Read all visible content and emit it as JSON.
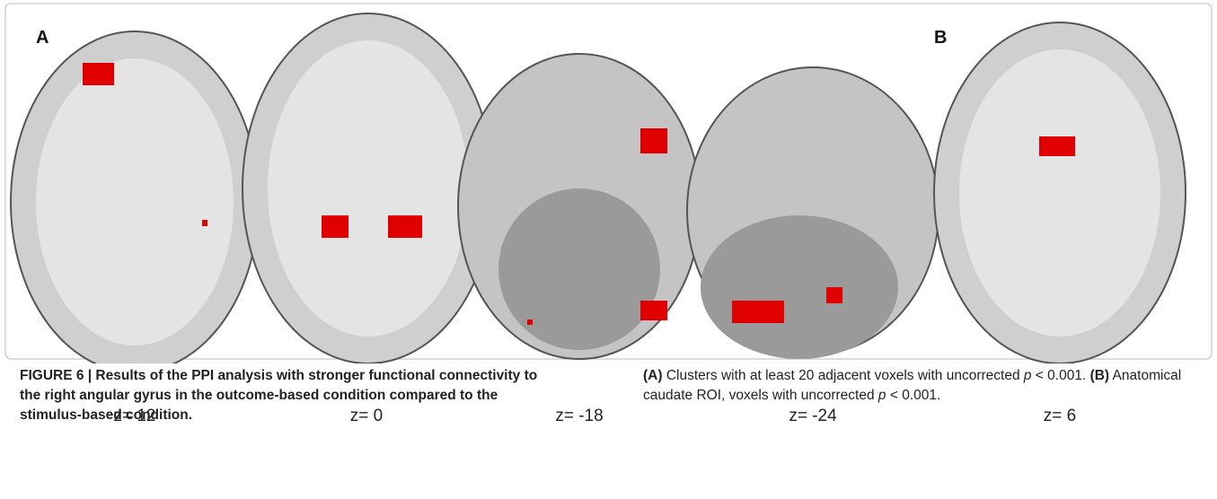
{
  "figure": {
    "panel_labels": [
      "A",
      "B"
    ],
    "slices": [
      "z= 12",
      "z= 0",
      "z= -18",
      "z= -24",
      "z= 6"
    ],
    "caption_left": "FIGURE 6 | Results of the PPI analysis with stronger functional connectivity to the right angular gyrus in the outcome-based condition compared to the stimulus-based condition.",
    "caption_right": [
      "(A)",
      " Clusters with at least 20 adjacent voxels with uncorrected ",
      "p",
      " < 0.001. ",
      "(B)",
      " Anatomical caudate ROI, voxels with uncorrected ",
      "p",
      " < 0.001."
    ]
  }
}
